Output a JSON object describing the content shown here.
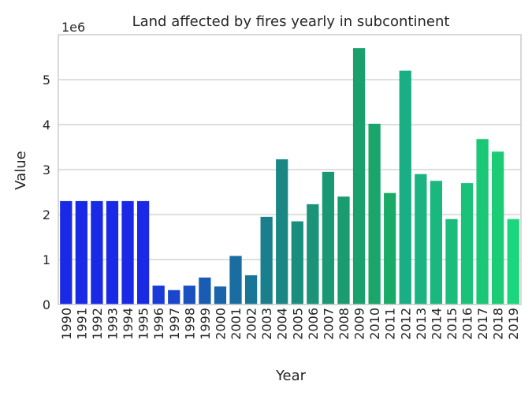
{
  "chart_data": {
    "type": "bar",
    "title": "Land affected by fires yearly in subcontinent",
    "xlabel": "Year",
    "ylabel": "Value",
    "scale_label": "1e6",
    "ylim": [
      0,
      6000000
    ],
    "yticks": [
      0,
      1000000,
      2000000,
      3000000,
      4000000,
      5000000
    ],
    "ytick_labels": [
      "0",
      "1",
      "2",
      "3",
      "4",
      "5"
    ],
    "grid": "horizontal",
    "categories": [
      "1990",
      "1991",
      "1992",
      "1993",
      "1994",
      "1995",
      "1996",
      "1997",
      "1998",
      "1999",
      "2000",
      "2001",
      "2002",
      "2003",
      "2004",
      "2005",
      "2006",
      "2007",
      "2008",
      "2009",
      "2010",
      "2011",
      "2012",
      "2013",
      "2014",
      "2015",
      "2016",
      "2017",
      "2018",
      "2019"
    ],
    "values": [
      2300000,
      2300000,
      2300000,
      2300000,
      2300000,
      2300000,
      420000,
      320000,
      420000,
      600000,
      400000,
      1080000,
      650000,
      1950000,
      3230000,
      1850000,
      2230000,
      2950000,
      2400000,
      5700000,
      4020000,
      2480000,
      5200000,
      2900000,
      2750000,
      1900000,
      2700000,
      3680000,
      3400000,
      1900000
    ],
    "colors": [
      "#1a29e6",
      "#1a29e6",
      "#1a29e6",
      "#1a29e6",
      "#1a29e6",
      "#1a29e6",
      "#1a3ad9",
      "#1a45cc",
      "#1a50c0",
      "#1a5bb4",
      "#1a64aa",
      "#1a6da0",
      "#1a7696",
      "#1a7f8c",
      "#1a8784",
      "#1a8e7d",
      "#1a9378",
      "#1a9874",
      "#1a9c70",
      "#1aa06d",
      "#1aa56a",
      "#1aaa67",
      "#1aae85",
      "#1ab381",
      "#1ab87e",
      "#1abd7b",
      "#1ac279",
      "#1ac777",
      "#1acc74",
      "#1ad77f"
    ]
  }
}
